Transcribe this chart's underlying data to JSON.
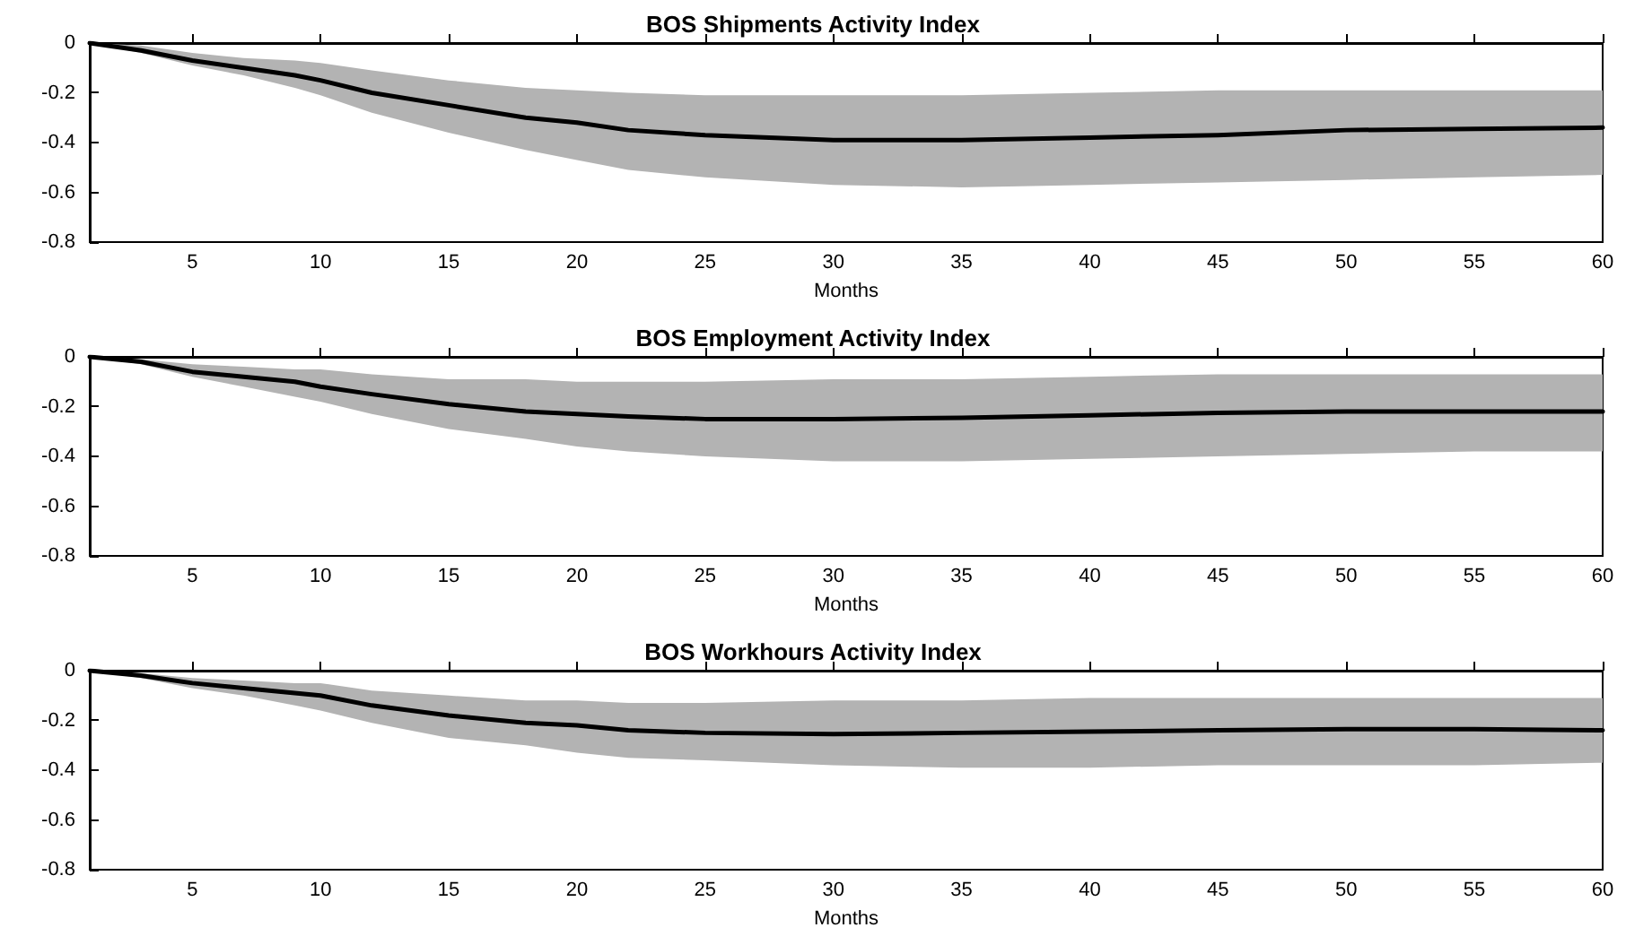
{
  "chart_data": [
    {
      "type": "line",
      "title": "BOS Shipments Activity Index",
      "xlabel": "Months",
      "xlim": [
        1,
        60
      ],
      "xticks": [
        5,
        10,
        15,
        20,
        25,
        30,
        35,
        40,
        45,
        50,
        55,
        60
      ],
      "ylim": [
        -0.8,
        0
      ],
      "yticks": [
        -0.8,
        -0.6,
        -0.4,
        -0.2,
        0
      ],
      "grid": false,
      "marker": "none",
      "line_style": "solid",
      "x": [
        1,
        3,
        5,
        7,
        9,
        10,
        12,
        15,
        18,
        20,
        22,
        25,
        30,
        35,
        40,
        45,
        50,
        55,
        60
      ],
      "series": [
        {
          "color": "#000000",
          "values": [
            0,
            -0.03,
            -0.07,
            -0.1,
            -0.13,
            -0.15,
            -0.2,
            -0.25,
            -0.3,
            -0.32,
            -0.35,
            -0.37,
            -0.39,
            -0.39,
            -0.38,
            -0.37,
            -0.35,
            -0.345,
            -0.34
          ],
          "upper": [
            0,
            -0.01,
            -0.04,
            -0.06,
            -0.07,
            -0.08,
            -0.11,
            -0.15,
            -0.18,
            -0.19,
            -0.2,
            -0.21,
            -0.21,
            -0.21,
            -0.2,
            -0.19,
            -0.19,
            -0.19,
            -0.19
          ],
          "lower": [
            0,
            -0.04,
            -0.09,
            -0.13,
            -0.18,
            -0.21,
            -0.28,
            -0.36,
            -0.43,
            -0.47,
            -0.51,
            -0.54,
            -0.57,
            -0.58,
            -0.57,
            -0.56,
            -0.55,
            -0.54,
            -0.53
          ]
        }
      ]
    },
    {
      "type": "line",
      "title": "BOS Employment Activity Index",
      "xlabel": "Months",
      "xlim": [
        1,
        60
      ],
      "xticks": [
        5,
        10,
        15,
        20,
        25,
        30,
        35,
        40,
        45,
        50,
        55,
        60
      ],
      "ylim": [
        -0.8,
        0
      ],
      "yticks": [
        -0.8,
        -0.6,
        -0.4,
        -0.2,
        0
      ],
      "grid": false,
      "marker": "none",
      "line_style": "solid",
      "x": [
        1,
        3,
        5,
        7,
        9,
        10,
        12,
        15,
        18,
        20,
        22,
        25,
        30,
        35,
        40,
        45,
        50,
        55,
        60
      ],
      "series": [
        {
          "color": "#000000",
          "values": [
            0,
            -0.02,
            -0.06,
            -0.08,
            -0.1,
            -0.12,
            -0.15,
            -0.19,
            -0.22,
            -0.23,
            -0.24,
            -0.25,
            -0.25,
            -0.245,
            -0.235,
            -0.225,
            -0.22,
            -0.22,
            -0.22
          ],
          "upper": [
            0,
            -0.01,
            -0.03,
            -0.04,
            -0.05,
            -0.05,
            -0.07,
            -0.09,
            -0.09,
            -0.1,
            -0.1,
            -0.1,
            -0.09,
            -0.09,
            -0.08,
            -0.07,
            -0.07,
            -0.07,
            -0.07
          ],
          "lower": [
            0,
            -0.03,
            -0.08,
            -0.12,
            -0.16,
            -0.18,
            -0.23,
            -0.29,
            -0.33,
            -0.36,
            -0.38,
            -0.4,
            -0.42,
            -0.42,
            -0.41,
            -0.4,
            -0.39,
            -0.38,
            -0.38
          ]
        }
      ]
    },
    {
      "type": "line",
      "title": "BOS Workhours Activity Index",
      "xlabel": "Months",
      "xlim": [
        1,
        60
      ],
      "xticks": [
        5,
        10,
        15,
        20,
        25,
        30,
        35,
        40,
        45,
        50,
        55,
        60
      ],
      "ylim": [
        -0.8,
        0
      ],
      "yticks": [
        -0.8,
        -0.6,
        -0.4,
        -0.2,
        0
      ],
      "grid": false,
      "marker": "none",
      "line_style": "solid",
      "x": [
        1,
        3,
        5,
        7,
        9,
        10,
        12,
        15,
        18,
        20,
        22,
        25,
        30,
        35,
        40,
        45,
        50,
        55,
        60
      ],
      "series": [
        {
          "color": "#000000",
          "values": [
            0,
            -0.02,
            -0.05,
            -0.07,
            -0.09,
            -0.1,
            -0.14,
            -0.18,
            -0.21,
            -0.22,
            -0.24,
            -0.25,
            -0.255,
            -0.25,
            -0.245,
            -0.24,
            -0.235,
            -0.235,
            -0.24
          ],
          "upper": [
            0,
            -0.01,
            -0.03,
            -0.04,
            -0.05,
            -0.05,
            -0.08,
            -0.1,
            -0.12,
            -0.12,
            -0.13,
            -0.13,
            -0.12,
            -0.12,
            -0.11,
            -0.11,
            -0.11,
            -0.11,
            -0.11
          ],
          "lower": [
            0,
            -0.03,
            -0.07,
            -0.1,
            -0.14,
            -0.16,
            -0.21,
            -0.27,
            -0.3,
            -0.33,
            -0.35,
            -0.36,
            -0.38,
            -0.39,
            -0.39,
            -0.38,
            -0.38,
            -0.38,
            -0.37
          ]
        }
      ]
    }
  ]
}
